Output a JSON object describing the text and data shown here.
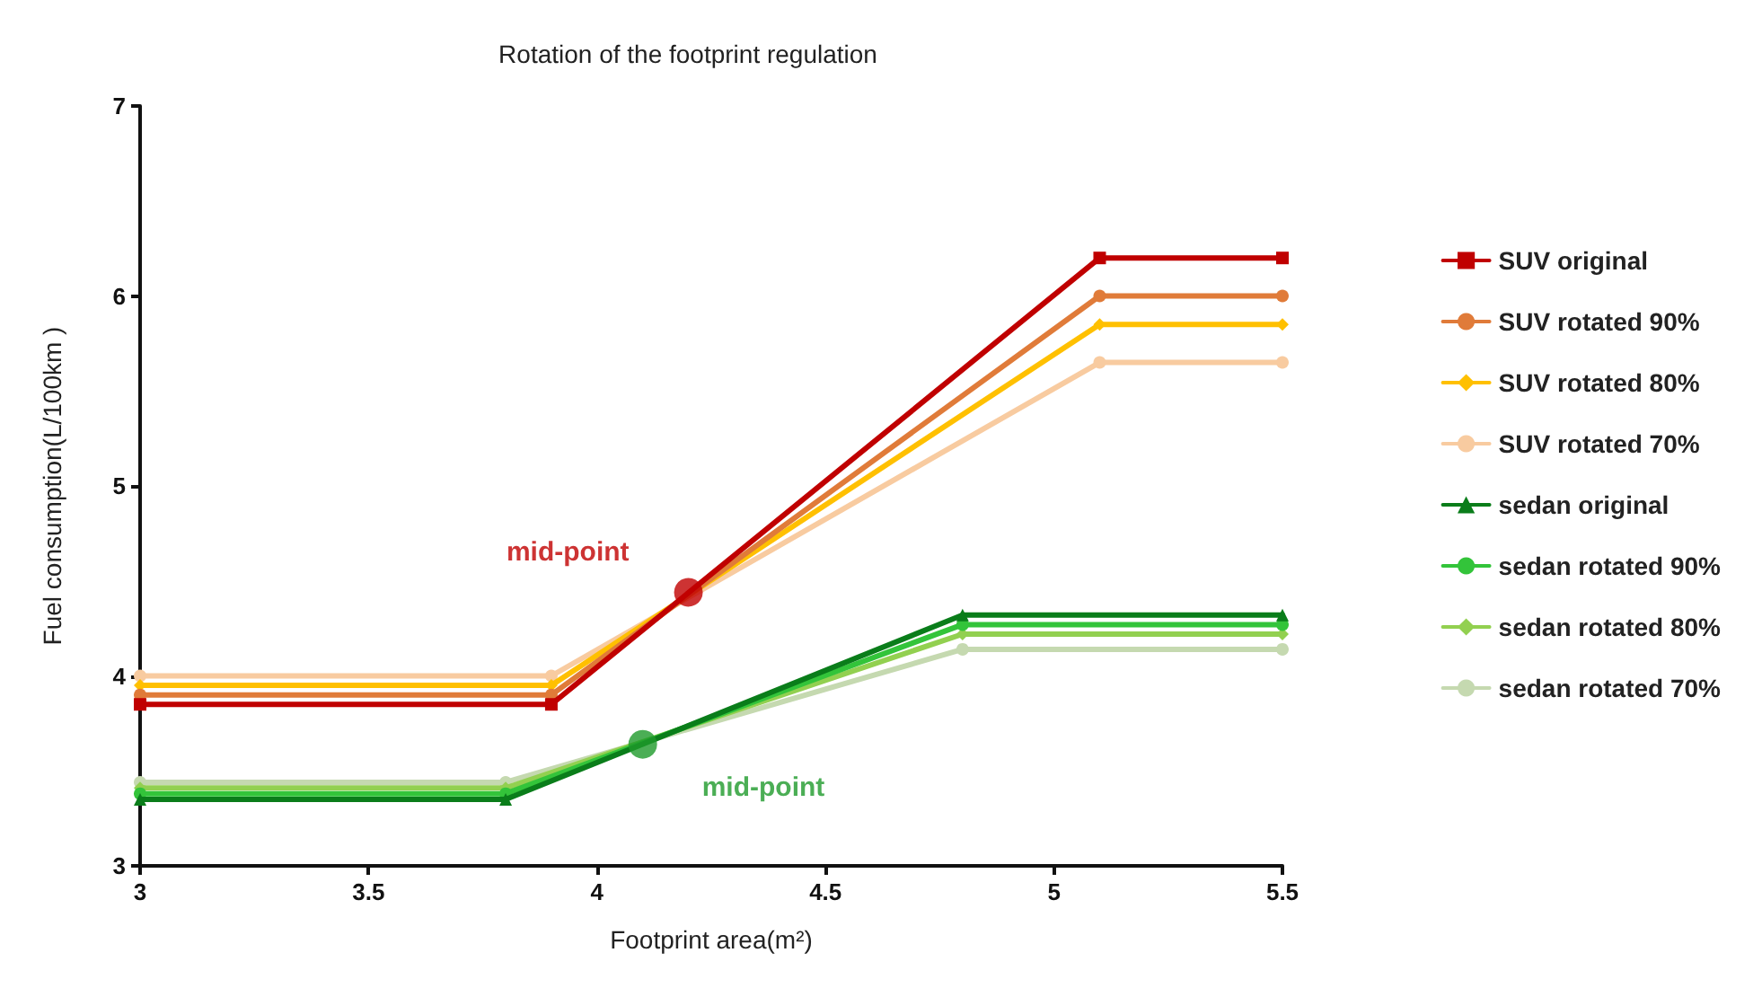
{
  "chart_data": {
    "type": "line",
    "title": "Rotation of the footprint regulation",
    "xlabel": "Footprint area(m²)",
    "ylabel": "Fuel consumption(L/100km )",
    "xlim": [
      3,
      5.5
    ],
    "xticks": [
      3,
      3.5,
      4,
      4.5,
      5,
      5.5
    ],
    "ylim": [
      3,
      7
    ],
    "yticks": [
      3,
      4,
      5,
      6,
      7
    ],
    "grid": false,
    "legend": "right",
    "line_style": "solid",
    "series": [
      {
        "name": "SUV original",
        "color": "#c00000",
        "marker": "square",
        "x": [
          3,
          3.9,
          5.1,
          5.5
        ],
        "values": [
          3.85,
          3.85,
          6.2,
          6.2
        ]
      },
      {
        "name": "SUV rotated 90%",
        "color": "#e07b39",
        "marker": "circle",
        "x": [
          3,
          3.9,
          5.1,
          5.5
        ],
        "values": [
          3.9,
          3.9,
          6.0,
          6.0
        ]
      },
      {
        "name": "SUV rotated 80%",
        "color": "#ffc000",
        "marker": "diamond",
        "x": [
          3,
          3.9,
          5.1,
          5.5
        ],
        "values": [
          3.95,
          3.95,
          5.85,
          5.85
        ]
      },
      {
        "name": "SUV rotated 70%",
        "color": "#f8cba0",
        "marker": "circle",
        "x": [
          3,
          3.9,
          5.1,
          5.5
        ],
        "values": [
          4.0,
          4.0,
          5.65,
          5.65
        ]
      },
      {
        "name": "sedan original",
        "color": "#0a7d1a",
        "marker": "triangle",
        "x": [
          3,
          3.8,
          4.8,
          5.5
        ],
        "values": [
          3.35,
          3.35,
          4.32,
          4.32
        ]
      },
      {
        "name": "sedan rotated 90%",
        "color": "#33c43a",
        "marker": "circle",
        "x": [
          3,
          3.8,
          4.8,
          5.5
        ],
        "values": [
          3.38,
          3.38,
          4.27,
          4.27
        ]
      },
      {
        "name": "sedan rotated 80%",
        "color": "#92d050",
        "marker": "diamond",
        "x": [
          3,
          3.8,
          4.8,
          5.5
        ],
        "values": [
          3.41,
          3.41,
          4.22,
          4.22
        ]
      },
      {
        "name": "sedan rotated 70%",
        "color": "#c5d9b0",
        "marker": "circle",
        "x": [
          3,
          3.8,
          4.8,
          5.5
        ],
        "values": [
          3.44,
          3.44,
          4.14,
          4.14
        ]
      },
      {
        "name": "mid-point",
        "type": "scatter",
        "color": "#c00000",
        "marker": "circle",
        "x": [
          4.2
        ],
        "values": [
          4.44
        ]
      },
      {
        "name": "mid-point",
        "type": "scatter",
        "color": "#1e9a2a",
        "marker": "circle",
        "x": [
          4.1
        ],
        "values": [
          3.64
        ]
      }
    ]
  }
}
